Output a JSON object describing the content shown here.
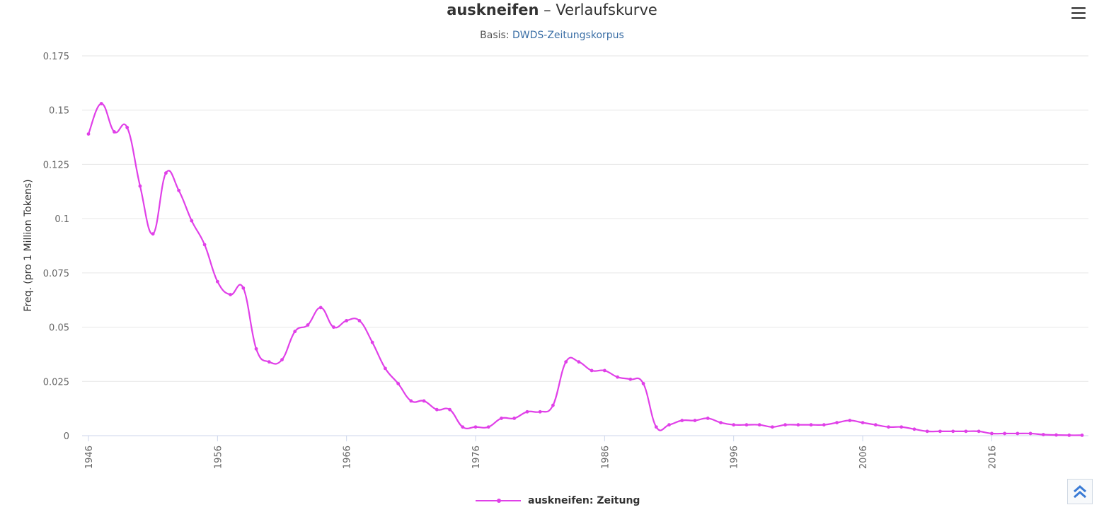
{
  "header": {
    "title_word": "auskneifen",
    "title_rest": " – Verlaufskurve",
    "subtitle_prefix": "Basis: ",
    "subtitle_link": "DWDS-Zeitungskorpus"
  },
  "colors": {
    "series": "#e040e8",
    "grid": "#e6e6e6",
    "axis_text": "#666666",
    "link": "#3a6ea5"
  },
  "legend": {
    "label": "auskneifen: Zeitung"
  },
  "chart_data": {
    "type": "line",
    "title": "auskneifen – Verlaufskurve",
    "subtitle": "Basis: DWDS-Zeitungskorpus",
    "xlabel": "",
    "ylabel": "Freq. (pro 1 Million Tokens)",
    "ylim": [
      0,
      0.175
    ],
    "xlim": [
      1946,
      2023
    ],
    "yticks": [
      "0",
      "0.025",
      "0.05",
      "0.075",
      "0.1",
      "0.125",
      "0.15",
      "0.175"
    ],
    "xticks": [
      "1946",
      "1956",
      "1966",
      "1976",
      "1986",
      "1996",
      "2006",
      "2016"
    ],
    "grid": true,
    "legend_position": "bottom-center",
    "series": [
      {
        "name": "auskneifen: Zeitung",
        "x": [
          1946,
          1947,
          1948,
          1949,
          1950,
          1951,
          1952,
          1953,
          1954,
          1955,
          1956,
          1957,
          1958,
          1959,
          1960,
          1961,
          1962,
          1963,
          1964,
          1965,
          1966,
          1967,
          1968,
          1969,
          1970,
          1971,
          1972,
          1973,
          1974,
          1975,
          1976,
          1977,
          1978,
          1979,
          1980,
          1981,
          1982,
          1983,
          1984,
          1985,
          1986,
          1987,
          1988,
          1989,
          1990,
          1991,
          1992,
          1993,
          1994,
          1995,
          1996,
          1997,
          1998,
          1999,
          2000,
          2001,
          2002,
          2003,
          2004,
          2005,
          2006,
          2007,
          2008,
          2009,
          2010,
          2011,
          2012,
          2013,
          2014,
          2015,
          2016,
          2017,
          2018,
          2019,
          2020,
          2021,
          2022,
          2023
        ],
        "values": [
          0.139,
          0.153,
          0.14,
          0.142,
          0.115,
          0.093,
          0.121,
          0.113,
          0.099,
          0.088,
          0.071,
          0.065,
          0.068,
          0.04,
          0.034,
          0.035,
          0.048,
          0.051,
          0.059,
          0.05,
          0.053,
          0.053,
          0.043,
          0.031,
          0.024,
          0.016,
          0.016,
          0.012,
          0.012,
          0.004,
          0.004,
          0.004,
          0.008,
          0.008,
          0.011,
          0.011,
          0.014,
          0.034,
          0.034,
          0.03,
          0.03,
          0.027,
          0.026,
          0.024,
          0.004,
          0.005,
          0.007,
          0.007,
          0.008,
          0.006,
          0.005,
          0.005,
          0.005,
          0.004,
          0.005,
          0.005,
          0.005,
          0.005,
          0.006,
          0.007,
          0.006,
          0.005,
          0.004,
          0.004,
          0.003,
          0.002,
          0.002,
          0.002,
          0.002,
          0.002,
          0.001,
          0.001,
          0.001,
          0.001,
          0.0005,
          0.0003,
          0.0002,
          0.0002
        ]
      }
    ]
  }
}
